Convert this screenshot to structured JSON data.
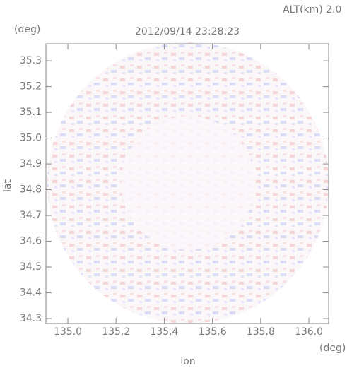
{
  "chart_data": {
    "type": "radar-map",
    "title": "2012/09/14 23:28:23",
    "annotation": "ALT(km) 2.0",
    "y_unit": "(deg)",
    "x_unit": "(deg)",
    "x_label": "lon",
    "y_label": "lat",
    "xlim": [
      134.909,
      136.082
    ],
    "ylim": [
      34.281,
      35.366
    ],
    "xticks": [
      {
        "value": 135.0,
        "label": "135.0"
      },
      135.2,
      135.4,
      135.6,
      135.8,
      {
        "value": 136.0,
        "label": "136.0"
      }
    ],
    "yticks": [
      34.3,
      34.4,
      34.5,
      34.6,
      34.7,
      34.8,
      34.9,
      {
        "value": 35.0,
        "label": "35.0"
      },
      35.1,
      35.2,
      35.3
    ]
  }
}
